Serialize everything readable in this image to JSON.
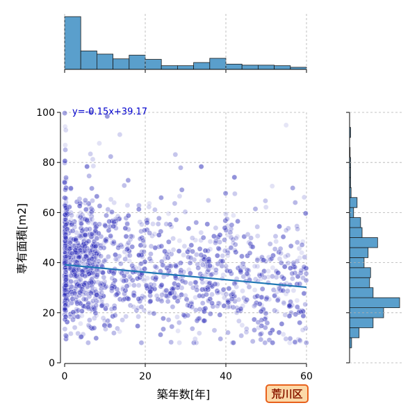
{
  "chart_data": {
    "type": "scatter",
    "xlabel": "築年数[年]",
    "ylabel": "専有面積[m2]",
    "xlim": [
      0,
      60
    ],
    "ylim": [
      0,
      100
    ],
    "x_ticks": [
      "0",
      "20",
      "40",
      "60"
    ],
    "y_ticks": [
      "0",
      "20",
      "40",
      "60",
      "80",
      "100"
    ],
    "grid": true,
    "regression": {
      "slope": -0.15,
      "intercept": 39.17,
      "label": "y=-0.15x+39.17"
    },
    "points_summary": {
      "approx_count": 1500,
      "x_range": [
        0,
        60
      ],
      "y_range": [
        8,
        100
      ]
    },
    "marginal_x_hist": {
      "bin_edges": [
        0,
        4,
        8,
        12,
        16,
        20,
        24,
        28,
        32,
        36,
        40,
        44,
        48,
        52,
        56,
        60
      ],
      "relative_heights": [
        1.0,
        0.35,
        0.29,
        0.2,
        0.27,
        0.19,
        0.07,
        0.07,
        0.13,
        0.21,
        0.1,
        0.08,
        0.08,
        0.07,
        0.04
      ]
    },
    "marginal_y_hist": {
      "bin_edges": [
        6,
        10,
        14,
        18,
        22,
        26,
        30,
        34,
        38,
        42,
        46,
        50,
        54,
        58,
        62,
        66,
        70,
        74,
        78,
        82,
        86,
        90,
        94
      ],
      "relative_heights": [
        0.04,
        0.19,
        0.47,
        0.68,
        1.0,
        0.47,
        0.4,
        0.42,
        0.29,
        0.37,
        0.56,
        0.25,
        0.22,
        0.08,
        0.15,
        0.03,
        0.02,
        0.02,
        0.02,
        0.01,
        0.0,
        0.02
      ]
    },
    "colors": {
      "points": "#3333bb",
      "regression": "#1f77b4",
      "hist_fill": "#5a9fcc",
      "hist_edge": "#1a1a1a",
      "grid": "#b0b0b0"
    }
  },
  "badge": {
    "label": "荒川区"
  }
}
